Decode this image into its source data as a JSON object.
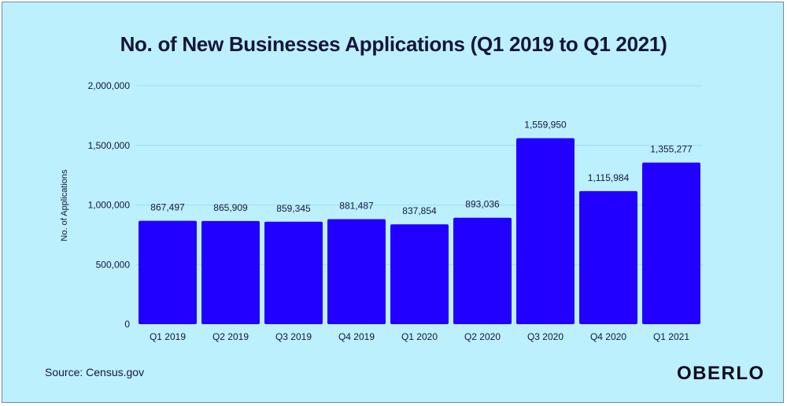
{
  "chart_data": {
    "type": "bar",
    "title": "No. of New Businesses Applications (Q1 2019 to Q1 2021)",
    "ylabel": "No. of Applications",
    "xlabel": "",
    "ylim": [
      0,
      2000000
    ],
    "yticks": [
      "0",
      "500,000",
      "1,000,000",
      "1,500,000",
      "2,000,000"
    ],
    "ytick_values": [
      0,
      500000,
      1000000,
      1500000,
      2000000
    ],
    "grid": true,
    "categories": [
      "Q1 2019",
      "Q2 2019",
      "Q3 2019",
      "Q4 2019",
      "Q1 2020",
      "Q2 2020",
      "Q3 2020",
      "Q4 2020",
      "Q1 2021"
    ],
    "values": [
      867497,
      865909,
      859345,
      881487,
      837854,
      893036,
      1559950,
      1115984,
      1355277
    ],
    "value_labels": [
      "867,497",
      "865,909",
      "859,345",
      "881,487",
      "837,854",
      "893,036",
      "1,559,950",
      "1,115,984",
      "1,355,277"
    ],
    "bar_color": "#2200ff",
    "background_color": "#bdf0fd"
  },
  "footer": {
    "source": "Source: Census.gov",
    "logo_text": "OBERLO"
  }
}
